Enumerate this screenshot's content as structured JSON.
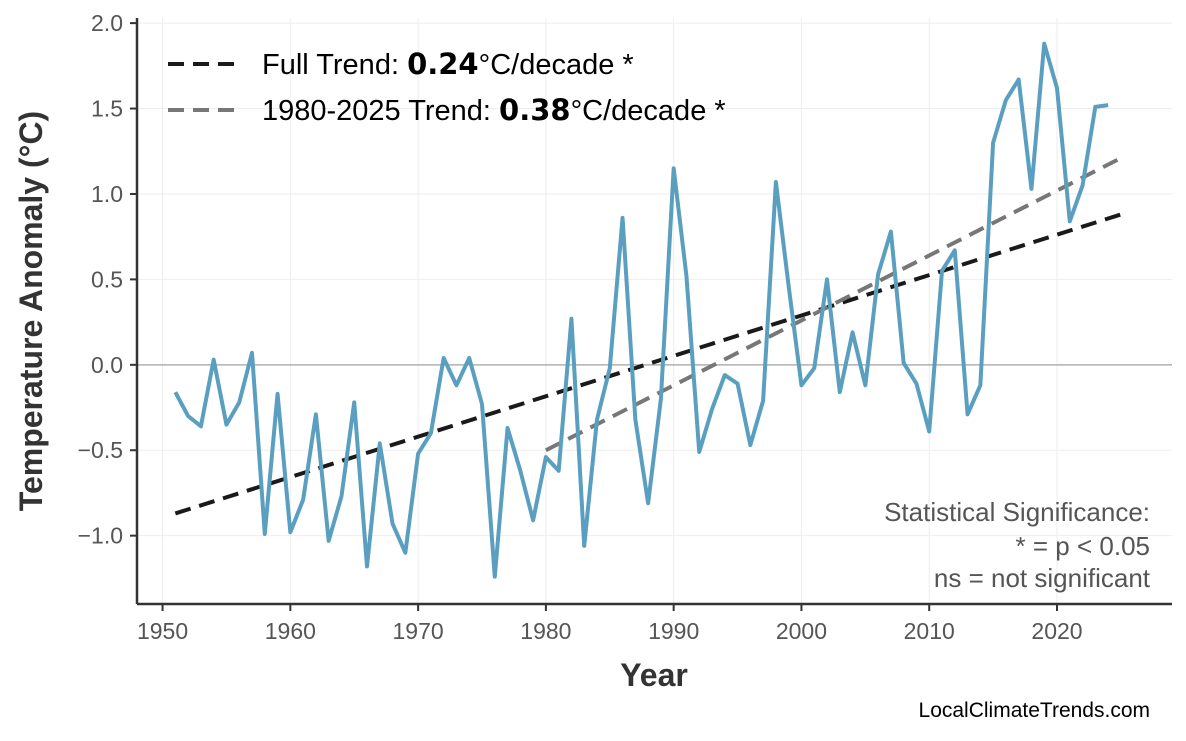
{
  "chart_data": {
    "type": "line",
    "title": "",
    "xlabel": "Year",
    "ylabel": "Temperature Anomaly (°C)",
    "xlim": [
      1948,
      2029
    ],
    "ylim": [
      -1.4,
      2.03
    ],
    "xticks": [
      1950,
      1960,
      1970,
      1980,
      1990,
      2000,
      2010,
      2020
    ],
    "yticks": [
      -1.0,
      -0.5,
      0.0,
      0.5,
      1.0,
      1.5,
      2.0
    ],
    "ytick_labels": [
      "−1.0",
      "−0.5",
      "0.0",
      "0.5",
      "1.0",
      "1.5",
      "2.0"
    ],
    "grid": true,
    "zero_line": true,
    "series": [
      {
        "color": "#5a9fc0",
        "x": [
          1951,
          1952,
          1953,
          1954,
          1955,
          1956,
          1957,
          1958,
          1959,
          1960,
          1961,
          1962,
          1963,
          1964,
          1965,
          1966,
          1967,
          1968,
          1969,
          1970,
          1971,
          1972,
          1973,
          1974,
          1975,
          1976,
          1977,
          1978,
          1979,
          1980,
          1981,
          1982,
          1983,
          1984,
          1985,
          1986,
          1987,
          1988,
          1989,
          1990,
          1991,
          1992,
          1993,
          1994,
          1995,
          1996,
          1997,
          1998,
          1999,
          2000,
          2001,
          2002,
          2003,
          2004,
          2005,
          2006,
          2007,
          2008,
          2009,
          2010,
          2011,
          2012,
          2013,
          2014,
          2015,
          2016,
          2017,
          2018,
          2019,
          2020,
          2021,
          2022,
          2023,
          2024
        ],
        "y": [
          -0.16,
          -0.3,
          -0.36,
          0.03,
          -0.35,
          -0.22,
          0.07,
          -0.99,
          -0.17,
          -0.98,
          -0.79,
          -0.29,
          -1.03,
          -0.77,
          -0.22,
          -1.18,
          -0.46,
          -0.93,
          -1.1,
          -0.52,
          -0.4,
          0.04,
          -0.12,
          0.04,
          -0.23,
          -1.24,
          -0.37,
          -0.62,
          -0.91,
          -0.54,
          -0.62,
          0.27,
          -1.06,
          -0.32,
          -0.02,
          0.86,
          -0.32,
          -0.81,
          -0.2,
          1.15,
          0.52,
          -0.51,
          -0.26,
          -0.06,
          -0.11,
          -0.47,
          -0.21,
          1.07,
          0.46,
          -0.12,
          -0.02,
          0.5,
          -0.16,
          0.19,
          -0.12,
          0.53,
          0.78,
          0.01,
          -0.11,
          -0.39,
          0.55,
          0.67,
          -0.29,
          -0.12,
          1.3,
          1.55,
          1.67,
          1.03,
          1.88,
          1.62,
          0.84,
          1.05,
          1.51,
          1.52
        ]
      }
    ],
    "trends": [
      {
        "legend_prefix": "Full Trend: ",
        "legend_value": "0.24",
        "legend_suffix": "°C/decade *",
        "color": "#1a1a1a",
        "x": [
          1951,
          2025
        ],
        "y": [
          -0.87,
          0.88
        ]
      },
      {
        "legend_prefix": "1980-2025 Trend: ",
        "legend_value": "0.38",
        "legend_suffix": "°C/decade *",
        "color": "#777777",
        "x": [
          1980,
          2025
        ],
        "y": [
          -0.5,
          1.21
        ]
      }
    ],
    "legend_placement": "top-left",
    "annotation": [
      "Statistical Significance:",
      "* = p < 0.05",
      "ns = not significant"
    ],
    "credit": "LocalClimateTrends.com"
  }
}
